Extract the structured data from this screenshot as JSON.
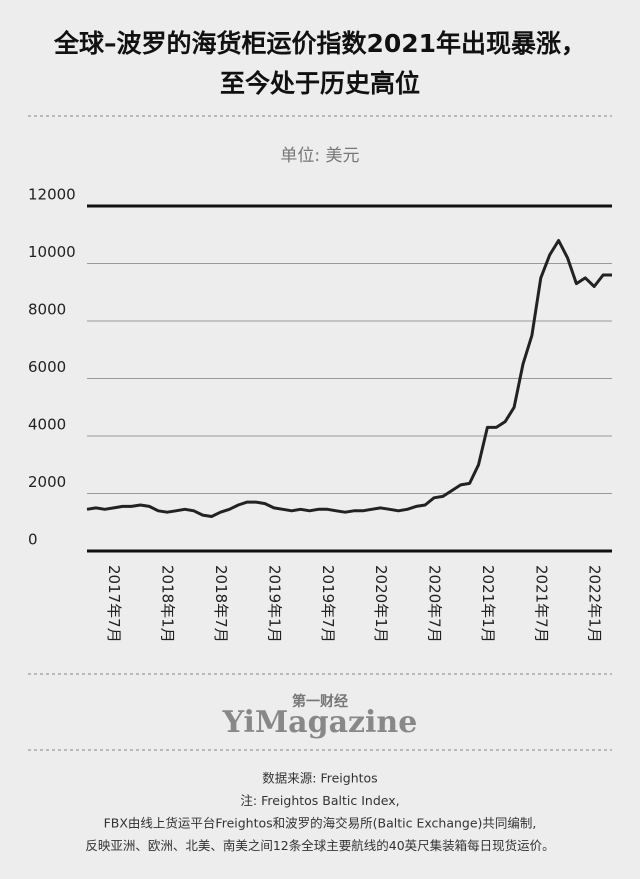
{
  "chart_data": {
    "type": "line",
    "title": [
      "全球–波罗的海货柜运价指数2021年出现暴涨，",
      "至今处于历史高位"
    ],
    "subtitle": "单位: 美元",
    "categories": [
      null,
      null,
      null,
      "2017年7月",
      null,
      null,
      null,
      null,
      null,
      "2018年1月",
      null,
      null,
      null,
      null,
      null,
      "2018年7月",
      null,
      null,
      null,
      null,
      null,
      "2019年1月",
      null,
      null,
      null,
      null,
      null,
      "2019年7月",
      null,
      null,
      null,
      null,
      null,
      "2020年1月",
      null,
      null,
      null,
      null,
      null,
      "2020年7月",
      null,
      null,
      null,
      null,
      null,
      "2021年1月",
      null,
      null,
      null,
      null,
      null,
      "2021年7月",
      null,
      null,
      null,
      null,
      null,
      "2022年1月",
      null,
      null
    ],
    "values": [
      1450,
      1500,
      1450,
      1500,
      1550,
      1550,
      1600,
      1550,
      1400,
      1350,
      1400,
      1450,
      1400,
      1250,
      1200,
      1350,
      1450,
      1600,
      1700,
      1700,
      1650,
      1500,
      1450,
      1400,
      1450,
      1400,
      1450,
      1450,
      1400,
      1350,
      1400,
      1400,
      1450,
      1500,
      1450,
      1400,
      1450,
      1550,
      1600,
      1850,
      1900,
      2100,
      2300,
      2350,
      3000,
      4300,
      4300,
      4500,
      5000,
      6500,
      7500,
      9500,
      10300,
      10800,
      10200,
      9300,
      9500,
      9200,
      9600,
      9600
    ],
    "color": "#222222",
    "ylim": [
      0,
      12000
    ],
    "yticks": [
      0,
      2000,
      4000,
      6000,
      8000,
      10000,
      12000
    ],
    "grid": true
  },
  "footer": {
    "brand_cn": "第一财经",
    "brand_en": "YiMagazine",
    "notes": [
      "数据来源: Freightos",
      "注: Freightos Baltic Index,",
      "FBX由线上货运平台Freightos和波罗的海交易所(Baltic Exchange)共同编制,",
      "反映亚洲、欧洲、北美、南美之间12条全球主要航线的40英尺集装箱每日现货运价。"
    ]
  }
}
